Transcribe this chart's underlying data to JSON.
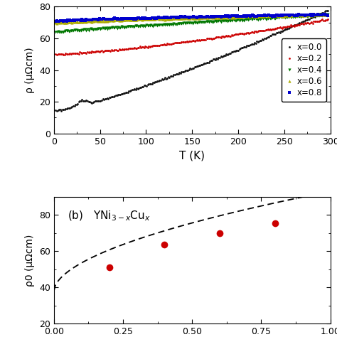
{
  "top_panel": {
    "ylabel": "ρ (μΩcm)",
    "xlabel": "T (K)",
    "xlim": [
      0,
      300
    ],
    "ylim": [
      0,
      80
    ],
    "yticks": [
      0,
      20,
      40,
      60,
      80
    ],
    "xticks": [
      0,
      50,
      100,
      150,
      200,
      250,
      300
    ],
    "series": [
      {
        "label": "x=0.0",
        "color": "#111111",
        "marker": "o",
        "markersize": 2.0
      },
      {
        "label": "x=0.2",
        "color": "#cc0000",
        "marker": "o",
        "markersize": 2.0
      },
      {
        "label": "x=0.4",
        "color": "#007700",
        "marker": "v",
        "markersize": 3.0
      },
      {
        "label": "x=0.6",
        "color": "#aaaa00",
        "marker": "^",
        "markersize": 3.0
      },
      {
        "label": "x=0.8",
        "color": "#0000cc",
        "marker": "s",
        "markersize": 2.5
      }
    ]
  },
  "bottom_panel": {
    "ylabel": "ρ0 (μΩcm)",
    "xlim": [
      0,
      1.0
    ],
    "ylim": [
      20,
      90
    ],
    "yticks": [
      20,
      40,
      60,
      80
    ],
    "xticks": [
      0.0,
      0.25,
      0.5,
      0.75,
      1.0
    ],
    "annotation_b": "(b)",
    "annotation_formula": "YNi$_{3-x}$Cu$_x$",
    "data_x": [
      0.2,
      0.4,
      0.6,
      0.8
    ],
    "data_y": [
      51.0,
      63.5,
      70.0,
      75.5
    ],
    "fit_x_start": 0.0,
    "fit_x_end": 1.05,
    "fit_a": 38.0,
    "fit_b": 55.0,
    "fit_c": 0.55
  }
}
